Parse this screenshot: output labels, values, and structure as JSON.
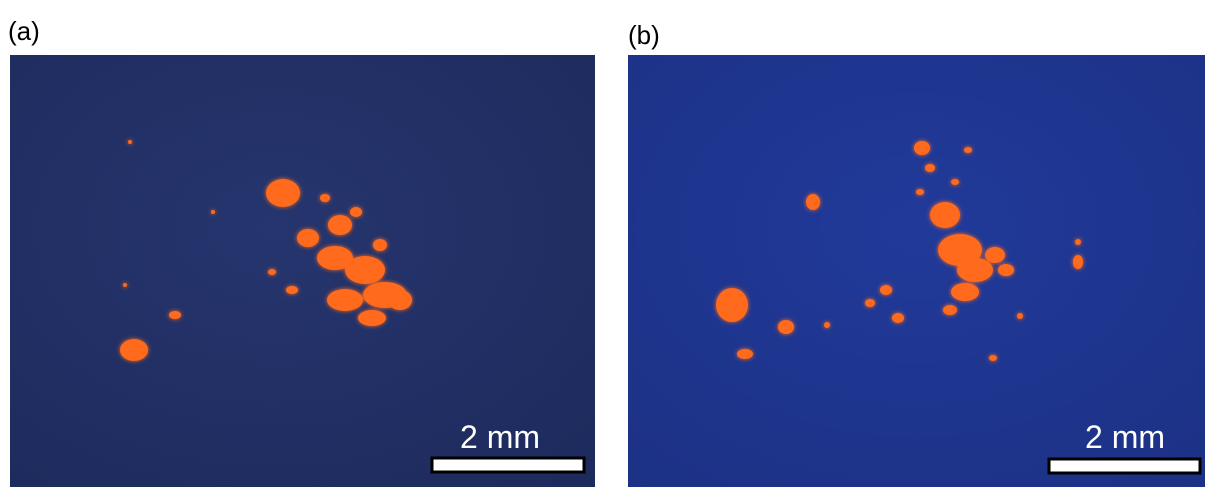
{
  "panels": [
    {
      "label": "(a)",
      "scale_bar": "2 mm"
    },
    {
      "label": "(b)",
      "scale_bar": "2 mm"
    }
  ]
}
